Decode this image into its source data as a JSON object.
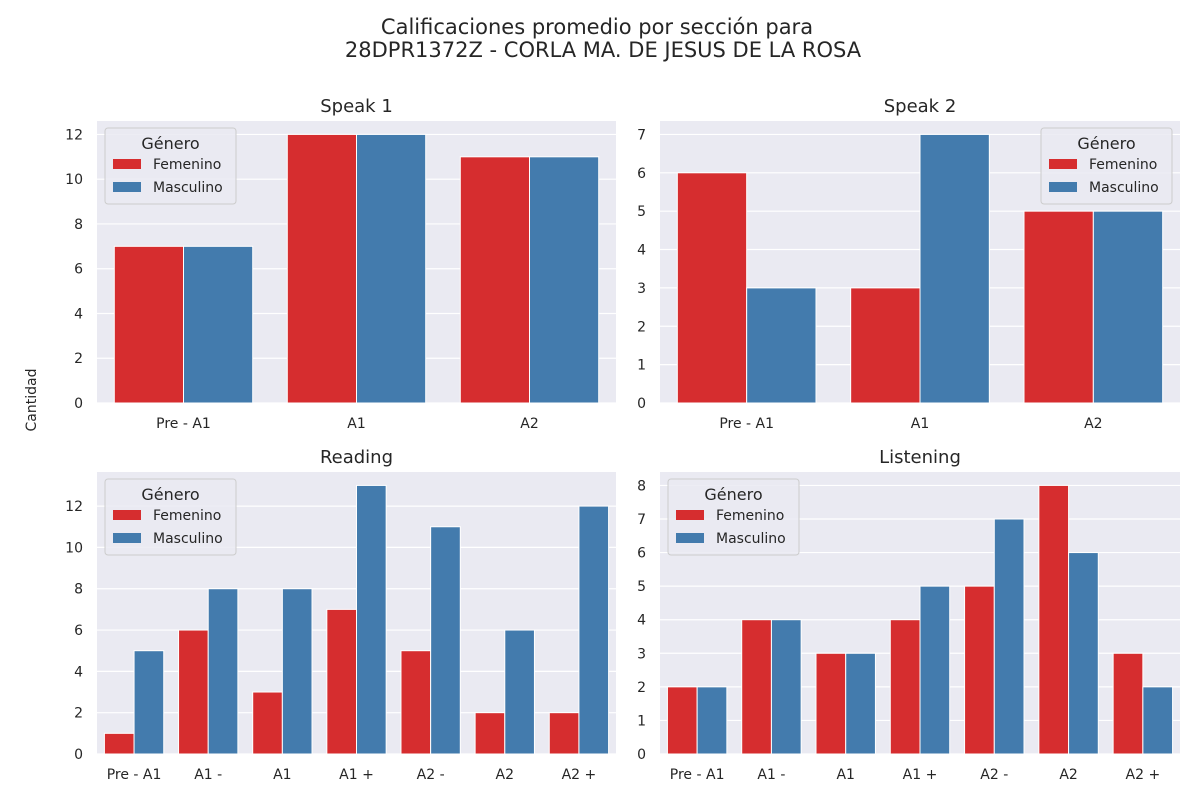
{
  "figure": {
    "title_line1": "Calificaciones promedio por sección para",
    "title_line2": "28DPR1372Z - CORLA MA. DE JESUS DE LA ROSA",
    "ylabel": "Cantidad"
  },
  "colors": {
    "femenino": "#d62d2f",
    "masculino": "#437bad",
    "plot_bg": "#eaeaf2",
    "grid": "#ffffff"
  },
  "chart_data": [
    {
      "type": "bar",
      "title": "Speak 1",
      "categories": [
        "Pre - A1",
        "A1",
        "A2"
      ],
      "series": [
        {
          "name": "Femenino",
          "values": [
            7,
            12,
            11
          ]
        },
        {
          "name": "Masculino",
          "values": [
            7,
            12,
            11
          ]
        }
      ],
      "ylim": [
        0,
        12.6
      ],
      "yticks": [
        0,
        2,
        4,
        6,
        8,
        10,
        12
      ],
      "legend": {
        "title": "Género",
        "placement": "top-left"
      },
      "grid": true
    },
    {
      "type": "bar",
      "title": "Speak 2",
      "categories": [
        "Pre - A1",
        "A1",
        "A2"
      ],
      "series": [
        {
          "name": "Femenino",
          "values": [
            6,
            3,
            5
          ]
        },
        {
          "name": "Masculino",
          "values": [
            3,
            7,
            5
          ]
        }
      ],
      "ylim": [
        0,
        7.35
      ],
      "yticks": [
        0,
        1,
        2,
        3,
        4,
        5,
        6,
        7
      ],
      "legend": {
        "title": "Género",
        "placement": "top-right"
      },
      "grid": true
    },
    {
      "type": "bar",
      "title": "Reading",
      "categories": [
        "Pre - A1",
        "A1 -",
        "A1",
        "A1 +",
        "A2 -",
        "A2",
        "A2 +"
      ],
      "series": [
        {
          "name": "Femenino",
          "values": [
            1,
            6,
            3,
            7,
            5,
            2,
            2
          ]
        },
        {
          "name": "Masculino",
          "values": [
            5,
            8,
            8,
            13,
            11,
            6,
            12
          ]
        }
      ],
      "ylim": [
        0,
        13.65
      ],
      "yticks": [
        0,
        2,
        4,
        6,
        8,
        10,
        12
      ],
      "legend": {
        "title": "Género",
        "placement": "top-left"
      },
      "grid": true
    },
    {
      "type": "bar",
      "title": "Listening",
      "categories": [
        "Pre - A1",
        "A1 -",
        "A1",
        "A1 +",
        "A2 -",
        "A2",
        "A2 +"
      ],
      "series": [
        {
          "name": "Femenino",
          "values": [
            2,
            4,
            3,
            4,
            5,
            8,
            3
          ]
        },
        {
          "name": "Masculino",
          "values": [
            2,
            4,
            3,
            5,
            7,
            6,
            2
          ]
        }
      ],
      "ylim": [
        0,
        8.4
      ],
      "yticks": [
        0,
        1,
        2,
        3,
        4,
        5,
        6,
        7,
        8
      ],
      "legend": {
        "title": "Género",
        "placement": "top-left"
      },
      "grid": true
    }
  ]
}
